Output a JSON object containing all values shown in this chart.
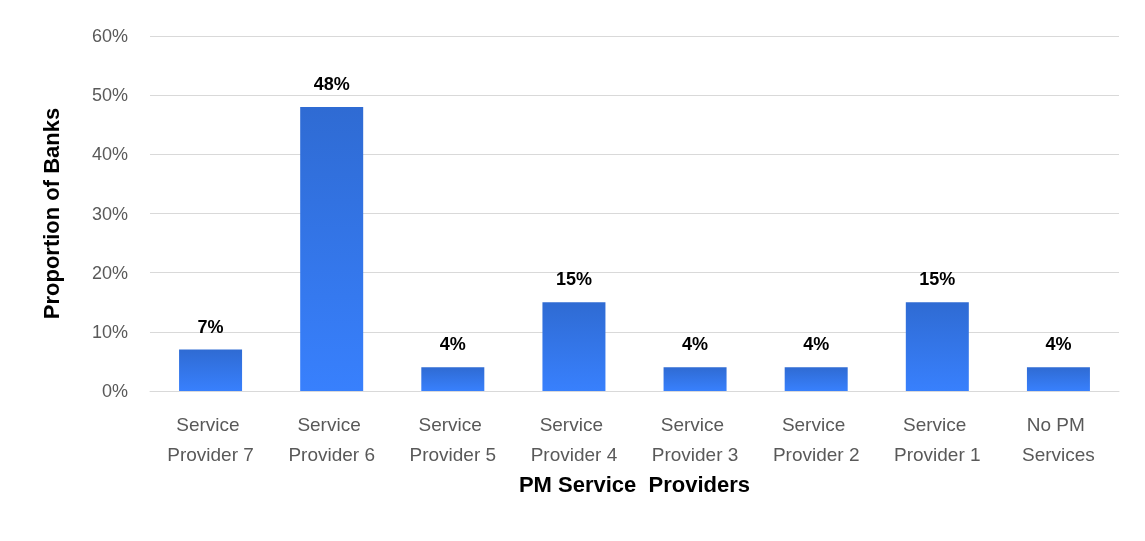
{
  "chart_data": {
    "type": "bar",
    "xlabel": "PM Service  Providers",
    "ylabel": "Proportion of Banks",
    "categories": [
      "Service Provider 7",
      "Service Provider 6",
      "Service Provider 5",
      "Service Provider 4",
      "Service Provider 3",
      "Service Provider 2",
      "Service Provider 1",
      "No PM Services"
    ],
    "values": [
      7,
      48,
      4,
      15,
      4,
      4,
      15,
      4
    ],
    "value_labels": [
      "7%",
      "48%",
      "4%",
      "15%",
      "4%",
      "4%",
      "15%",
      "4%"
    ],
    "color": "#2f6bd3",
    "ylim": [
      0,
      60
    ],
    "yticks": [
      {
        "value": 0,
        "label": "0%"
      },
      {
        "value": 10,
        "label": "10%"
      },
      {
        "value": 20,
        "label": "20%"
      },
      {
        "value": 30,
        "label": "30%"
      },
      {
        "value": 40,
        "label": "40%"
      },
      {
        "value": 50,
        "label": "50%"
      },
      {
        "value": 60,
        "label": "60%"
      }
    ],
    "grid": "y"
  }
}
